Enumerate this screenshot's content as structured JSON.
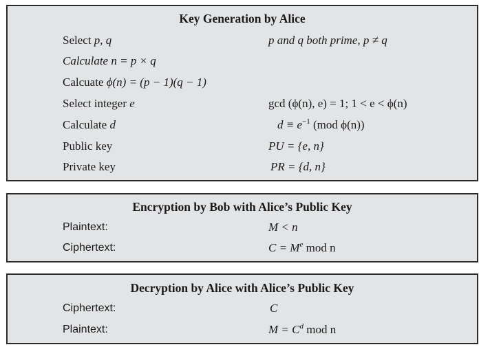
{
  "key_generation": {
    "title": "Key Generation by Alice",
    "rows": [
      {
        "label_pre": "Select ",
        "label_var": "p, q",
        "label_post": "",
        "formula": "p and q both prime, p ≠ q"
      },
      {
        "label_pre": "",
        "label_var": "Calculate n",
        "label_post": " = p × q",
        "formula": ""
      },
      {
        "label_pre": "Calcuate ",
        "label_var": "ϕ(n) = (p − 1)(q − 1)",
        "label_post": "",
        "formula": ""
      },
      {
        "label_pre": "Select integer ",
        "label_var": "e",
        "label_post": "",
        "formula": "gcd (ϕ(n), e) = 1; 1 < e < ϕ(n)"
      },
      {
        "label_pre": "Calculate ",
        "label_var": "d",
        "label_post": "",
        "formula_pre": "d ≡ e",
        "formula_sup": "−1",
        "formula_post": " (mod ϕ(n))"
      },
      {
        "label_pre": "Public key",
        "label_var": "",
        "label_post": "",
        "formula": "PU = {e, n}"
      },
      {
        "label_pre": "Private key",
        "label_var": "",
        "label_post": "",
        "formula": "PR = {d, n}"
      }
    ]
  },
  "encryption": {
    "title": "Encryption by Bob with Alice’s Public Key",
    "rows": [
      {
        "label": "Plaintext:",
        "formula": "M < n"
      },
      {
        "label": "Ciphertext:",
        "formula_pre": "C = M",
        "formula_sup": "e",
        "formula_post": " mod n"
      }
    ]
  },
  "decryption": {
    "title": "Decryption by Alice with Alice’s Public Key",
    "rows": [
      {
        "label": "Ciphertext:",
        "formula": "C"
      },
      {
        "label": "Plaintext:",
        "formula_pre": "M = C",
        "formula_sup": "d",
        "formula_post": " mod n"
      }
    ]
  }
}
